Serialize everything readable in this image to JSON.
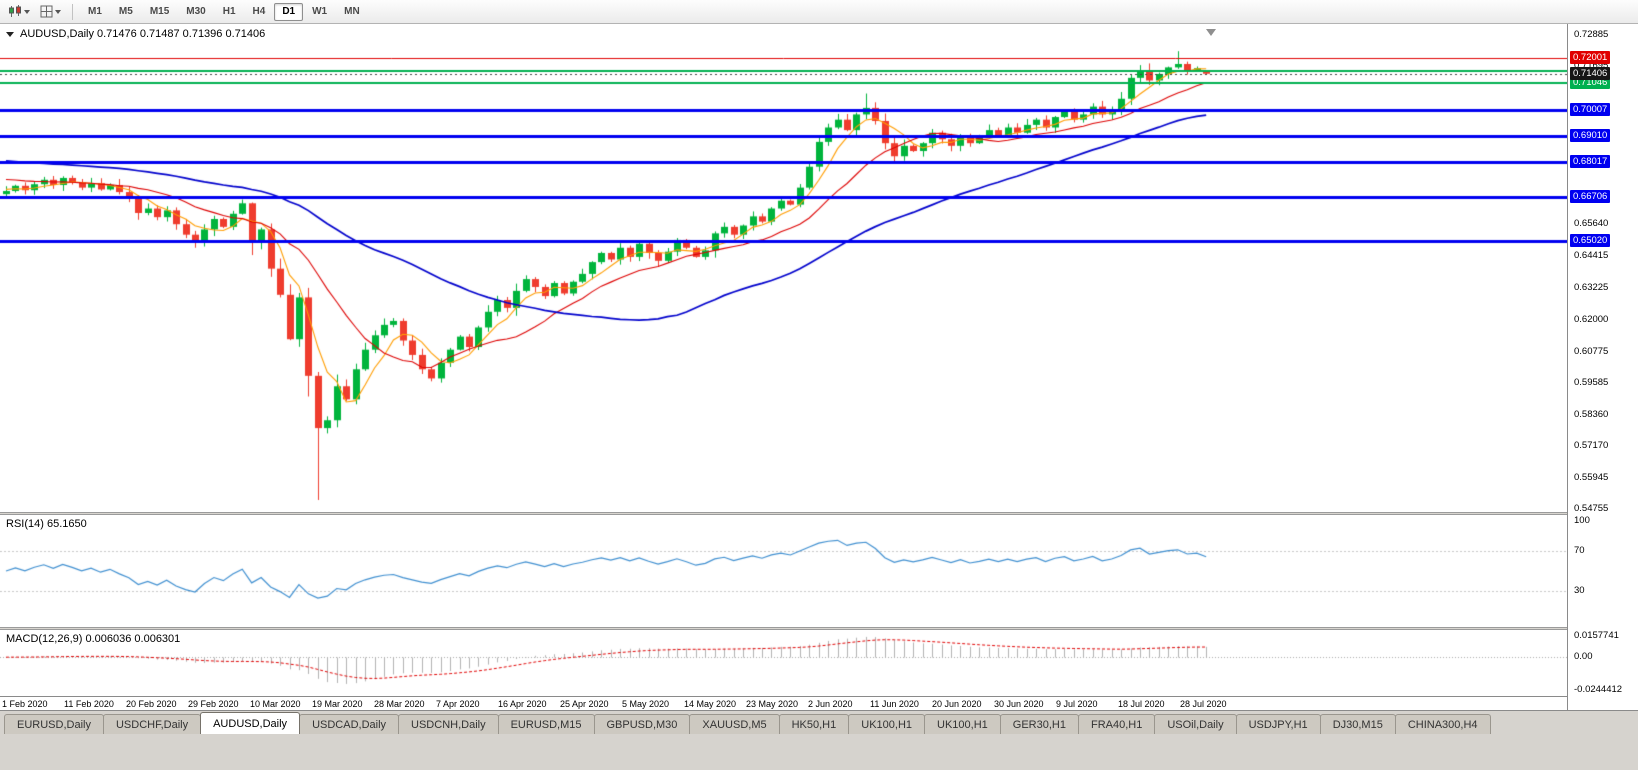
{
  "app": {
    "toolbar": {
      "timeframes": [
        "M1",
        "M5",
        "M15",
        "M30",
        "H1",
        "H4",
        "D1",
        "W1",
        "MN"
      ],
      "active_timeframe": "D1"
    },
    "tabs": {
      "items": [
        "EURUSD,Daily",
        "USDCHF,Daily",
        "AUDUSD,Daily",
        "USDCAD,Daily",
        "USDCNH,Daily",
        "EURUSD,M15",
        "GBPUSD,M30",
        "XAUUSD,M5",
        "HK50,H1",
        "UK100,H1",
        "UK100,H1",
        "GER30,H1",
        "FRA40,H1",
        "USOil,Daily",
        "USDJPY,H1",
        "DJ30,M15",
        "CHINA300,H4"
      ],
      "active_index": 2
    }
  },
  "chart_data": {
    "type": "candlestick",
    "symbol": "AUDUSD",
    "period": "Daily",
    "title": "AUDUSD,Daily 0.71476 0.71487 0.71396 0.71406",
    "ohlc": {
      "open": "0.71476",
      "high": "0.71487",
      "low": "0.71396",
      "close": "0.71406"
    },
    "x_labels": [
      "1 Feb 2020",
      "11 Feb 2020",
      "20 Feb 2020",
      "29 Feb 2020",
      "10 Mar 2020",
      "19 Mar 2020",
      "28 Mar 2020",
      "7 Apr 2020",
      "16 Apr 2020",
      "25 Apr 2020",
      "5 May 2020",
      "14 May 2020",
      "23 May 2020",
      "2 Jun 2020",
      "11 Jun 2020",
      "20 Jun 2020",
      "30 Jun 2020",
      "9 Jul 2020",
      "18 Jul 2020",
      "28 Jul 2020"
    ],
    "closes": [
      0.6692,
      0.6712,
      0.6695,
      0.6718,
      0.6735,
      0.6715,
      0.6742,
      0.6725,
      0.6705,
      0.6722,
      0.6698,
      0.6715,
      0.6688,
      0.6662,
      0.6608,
      0.6625,
      0.6592,
      0.6618,
      0.6565,
      0.6525,
      0.6495,
      0.6545,
      0.6585,
      0.6555,
      0.6605,
      0.6645,
      0.6495,
      0.6545,
      0.6395,
      0.6295,
      0.6125,
      0.6285,
      0.5985,
      0.5785,
      0.5815,
      0.5945,
      0.5895,
      0.601,
      0.6085,
      0.614,
      0.618,
      0.6195,
      0.612,
      0.6065,
      0.601,
      0.5975,
      0.6035,
      0.6085,
      0.6135,
      0.6095,
      0.617,
      0.623,
      0.6275,
      0.6245,
      0.631,
      0.6355,
      0.6325,
      0.629,
      0.634,
      0.63,
      0.6345,
      0.6375,
      0.642,
      0.6455,
      0.643,
      0.6475,
      0.644,
      0.649,
      0.6455,
      0.6425,
      0.646,
      0.6505,
      0.6475,
      0.644,
      0.6465,
      0.653,
      0.6555,
      0.6525,
      0.656,
      0.6595,
      0.6575,
      0.6625,
      0.6655,
      0.664,
      0.6705,
      0.6785,
      0.688,
      0.6935,
      0.6965,
      0.6925,
      0.6985,
      0.701,
      0.696,
      0.6875,
      0.6825,
      0.6865,
      0.6845,
      0.6875,
      0.6915,
      0.689,
      0.6865,
      0.6905,
      0.6875,
      0.6895,
      0.6925,
      0.6905,
      0.6935,
      0.6915,
      0.6945,
      0.6965,
      0.6935,
      0.6975,
      0.6995,
      0.6965,
      0.6985,
      0.7015,
      0.6985,
      0.7005,
      0.7045,
      0.7125,
      0.7155,
      0.7115,
      0.714,
      0.7165,
      0.7178,
      0.7152,
      0.7162,
      0.71406
    ],
    "wick_overrides": {
      "33": {
        "low": 0.551
      },
      "124": {
        "high": 0.7227
      },
      "91": {
        "high": 0.7065
      }
    },
    "last_candle": {
      "open": 0.71476,
      "high": 0.71487,
      "low": 0.71396,
      "close": 0.71406
    },
    "price_axis": {
      "view_max": 0.7331,
      "view_min": 0.5464,
      "labels": [
        "0.72885",
        "0.71695",
        "0.65640",
        "0.64415",
        "0.63225",
        "0.62000",
        "0.60775",
        "0.59585",
        "0.58360",
        "0.57170",
        "0.55945",
        "0.54755"
      ]
    },
    "current_price": {
      "text": "0.71406",
      "value": 0.71406,
      "badge_color": "#161616"
    },
    "levels": [
      {
        "value": 0.72001,
        "text": "0.72001",
        "color": "#e00000",
        "width": 1,
        "show_label": true
      },
      {
        "value": 0.71506,
        "text": "0.71506",
        "color": "#00b050",
        "width": 2,
        "show_label": false
      },
      {
        "value": 0.71046,
        "text": "0.71046",
        "color": "#00b050",
        "width": 2,
        "show_label": true
      },
      {
        "value": 0.70007,
        "text": "0.70007",
        "color": "#0000f0",
        "width": 3,
        "show_label": true
      },
      {
        "value": 0.6901,
        "text": "0.69010",
        "color": "#0000f0",
        "width": 3,
        "show_label": true
      },
      {
        "value": 0.68017,
        "text": "0.68017",
        "color": "#0000f0",
        "width": 3,
        "show_label": true
      },
      {
        "value": 0.66706,
        "text": "0.66706",
        "color": "#0000f0",
        "width": 3,
        "show_label": true
      },
      {
        "value": 0.6502,
        "text": "0.65020",
        "color": "#0000f0",
        "width": 3,
        "show_label": true
      }
    ],
    "moving_averages": [
      {
        "name": "ma-fast",
        "period": 5,
        "seed": 0.67,
        "color": "#ff9d00"
      },
      {
        "name": "ma-medium",
        "period": 13,
        "seed": 0.674,
        "color": "#dd0000"
      },
      {
        "name": "ma-slow",
        "period": 40,
        "seed": 0.681,
        "color": "#0000cc"
      }
    ],
    "colors": {
      "up": "#00b43c",
      "down": "#ef3c2e",
      "background": "#ffffff",
      "axis_text": "#000000"
    },
    "indicators": {
      "rsi": {
        "label": "RSI(14) 65.1650",
        "period": 14,
        "color": "#3f8fd0",
        "level_lines": [
          70,
          30
        ],
        "axis": [
          {
            "text": "100",
            "value": 100
          },
          {
            "text": "70",
            "value": 70
          },
          {
            "text": "30",
            "value": 30
          }
        ]
      },
      "macd": {
        "label": "MACD(12,26,9) 0.006036 0.006301",
        "fast": 12,
        "slow": 26,
        "signal": 9,
        "histogram_color": "#b2b2b2",
        "signal_color": "#e00000",
        "scale_max": 0.0157741,
        "scale_min": -0.0244412,
        "axis": [
          {
            "text": "0.0157741",
            "value": 0.0157741
          },
          {
            "text": "0.00",
            "value": 0
          },
          {
            "text": "-0.0244412",
            "value": -0.0244412
          }
        ]
      }
    }
  }
}
